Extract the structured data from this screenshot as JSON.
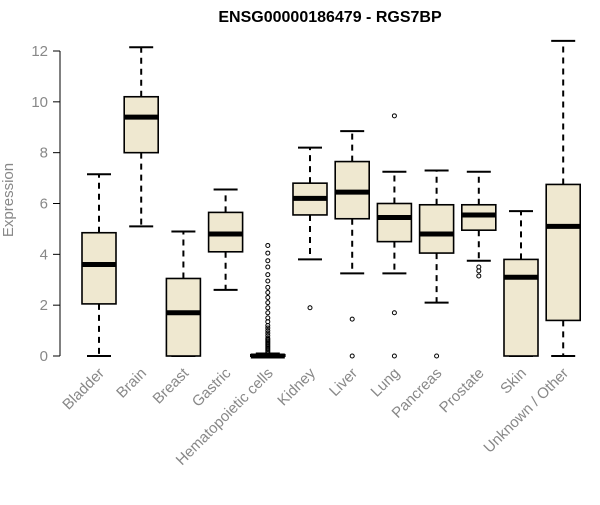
{
  "chart_data": {
    "type": "boxplot",
    "title": "ENSG00000186479 - RGS7BP",
    "xlabel": "",
    "ylabel": "Expression",
    "ylim": [
      0,
      12.4
    ],
    "yticks": [
      0,
      2,
      4,
      6,
      8,
      10,
      12
    ],
    "box_fill": "#efe8d0",
    "label_color": "#888888",
    "grid": false,
    "categories": [
      "Bladder",
      "Brain",
      "Breast",
      "Gastric",
      "Hematopoietic cells",
      "Kidney",
      "Liver",
      "Lung",
      "Pancreas",
      "Prostate",
      "Skin",
      "Unknown / Other"
    ],
    "boxes": [
      {
        "category": "Bladder",
        "whisker_low": 0.0,
        "q1": 2.05,
        "median": 3.6,
        "q3": 4.85,
        "whisker_high": 7.15,
        "outliers": []
      },
      {
        "category": "Brain",
        "whisker_low": 5.1,
        "q1": 8.0,
        "median": 9.4,
        "q3": 10.2,
        "whisker_high": 12.15,
        "outliers": []
      },
      {
        "category": "Breast",
        "whisker_low": 0.0,
        "q1": 0.0,
        "median": 1.7,
        "q3": 3.05,
        "whisker_high": 4.9,
        "outliers": []
      },
      {
        "category": "Gastric",
        "whisker_low": 2.6,
        "q1": 4.1,
        "median": 4.8,
        "q3": 5.65,
        "whisker_high": 6.55,
        "outliers": []
      },
      {
        "category": "Hematopoietic cells",
        "whisker_low": 0.0,
        "q1": 0.0,
        "median": 0.0,
        "q3": 0.05,
        "whisker_high": 0.1,
        "outliers": [
          0.15,
          0.2,
          0.25,
          0.3,
          0.35,
          0.4,
          0.45,
          0.5,
          0.55,
          0.6,
          0.65,
          0.7,
          0.8,
          0.9,
          1.0,
          1.1,
          1.2,
          1.35,
          1.5,
          1.7,
          1.9,
          2.1,
          2.3,
          2.5,
          2.7,
          2.95,
          3.2,
          3.5,
          3.75,
          4.05,
          4.35
        ]
      },
      {
        "category": "Kidney",
        "whisker_low": 3.8,
        "q1": 5.55,
        "median": 6.2,
        "q3": 6.8,
        "whisker_high": 8.2,
        "outliers": [
          1.9
        ]
      },
      {
        "category": "Liver",
        "whisker_low": 3.25,
        "q1": 5.4,
        "median": 6.45,
        "q3": 7.65,
        "whisker_high": 8.85,
        "outliers": [
          0.0,
          1.45
        ]
      },
      {
        "category": "Lung",
        "whisker_low": 3.25,
        "q1": 4.5,
        "median": 5.45,
        "q3": 6.0,
        "whisker_high": 7.25,
        "outliers": [
          0.0,
          1.7,
          9.45
        ]
      },
      {
        "category": "Pancreas",
        "whisker_low": 2.1,
        "q1": 4.05,
        "median": 4.8,
        "q3": 5.95,
        "whisker_high": 7.3,
        "outliers": [
          0.0
        ]
      },
      {
        "category": "Prostate",
        "whisker_low": 3.75,
        "q1": 4.95,
        "median": 5.55,
        "q3": 5.95,
        "whisker_high": 7.25,
        "outliers": [
          3.15,
          3.35,
          3.5
        ]
      },
      {
        "category": "Skin",
        "whisker_low": 0.0,
        "q1": 0.0,
        "median": 3.1,
        "q3": 3.8,
        "whisker_high": 5.7,
        "outliers": []
      },
      {
        "category": "Unknown / Other",
        "whisker_low": 0.0,
        "q1": 1.4,
        "median": 5.1,
        "q3": 6.75,
        "whisker_high": 12.4,
        "outliers": []
      }
    ]
  }
}
